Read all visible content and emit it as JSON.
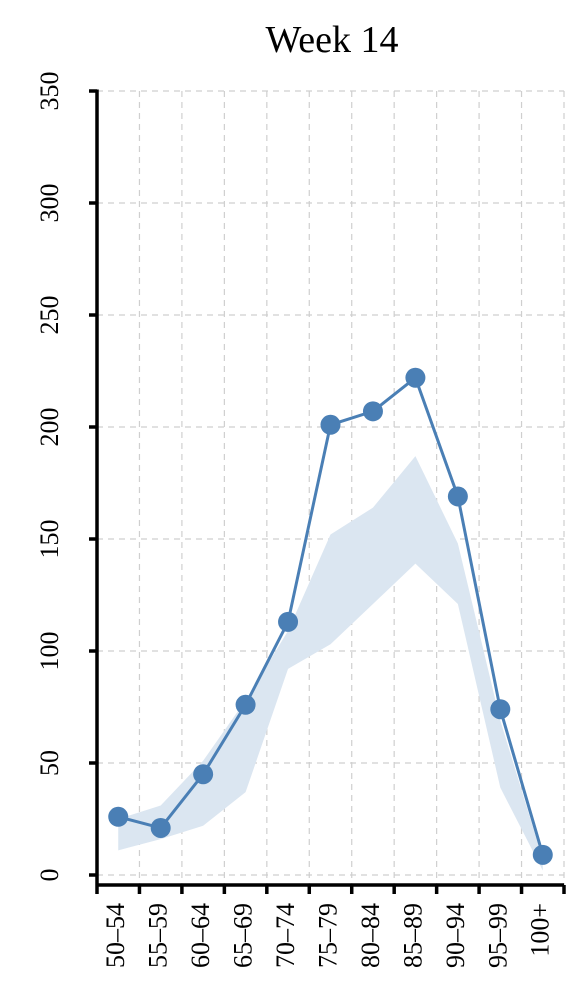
{
  "chart_data": {
    "type": "line",
    "title": "Week 14",
    "categories": [
      "50–54",
      "55–59",
      "60–64",
      "65–69",
      "70–74",
      "75–79",
      "80–84",
      "85–89",
      "90–94",
      "95–99",
      "100+"
    ],
    "series": [
      {
        "color": "#4a7fb5",
        "values": [
          26,
          21,
          45,
          76,
          113,
          201,
          207,
          222,
          169,
          74,
          9
        ]
      }
    ],
    "band": {
      "color": "#dbe6f1",
      "lower": [
        11,
        16,
        22,
        37,
        92,
        103,
        121,
        139,
        121,
        39,
        2
      ],
      "upper": [
        25,
        31,
        51,
        78,
        109,
        152,
        164,
        187,
        148,
        69,
        7
      ]
    },
    "ylim": [
      0,
      350
    ],
    "yticks": [
      0,
      50,
      100,
      150,
      200,
      250,
      300,
      350
    ],
    "grid": true
  }
}
